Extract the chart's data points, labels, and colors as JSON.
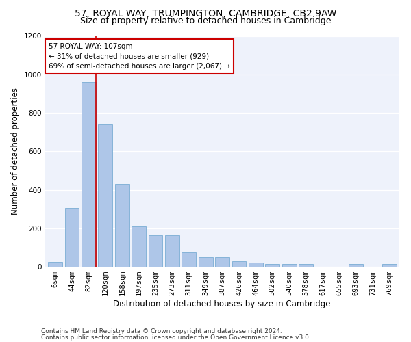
{
  "title_line1": "57, ROYAL WAY, TRUMPINGTON, CAMBRIDGE, CB2 9AW",
  "title_line2": "Size of property relative to detached houses in Cambridge",
  "xlabel": "Distribution of detached houses by size in Cambridge",
  "ylabel": "Number of detached properties",
  "bins": [
    "6sqm",
    "44sqm",
    "82sqm",
    "120sqm",
    "158sqm",
    "197sqm",
    "235sqm",
    "273sqm",
    "311sqm",
    "349sqm",
    "387sqm",
    "426sqm",
    "464sqm",
    "502sqm",
    "540sqm",
    "578sqm",
    "617sqm",
    "655sqm",
    "693sqm",
    "731sqm",
    "769sqm"
  ],
  "values": [
    25,
    305,
    960,
    740,
    430,
    210,
    165,
    165,
    75,
    50,
    50,
    30,
    20,
    15,
    15,
    15,
    0,
    0,
    15,
    0,
    15
  ],
  "bar_color": "#aec6e8",
  "bar_edge_color": "#7aadd4",
  "marker_line_color": "#cc0000",
  "annotation_text": "57 ROYAL WAY: 107sqm\n← 31% of detached houses are smaller (929)\n69% of semi-detached houses are larger (2,067) →",
  "annotation_box_color": "#ffffff",
  "annotation_box_edge_color": "#cc0000",
  "ylim": [
    0,
    1200
  ],
  "yticks": [
    0,
    200,
    400,
    600,
    800,
    1000,
    1200
  ],
  "background_color": "#eef2fb",
  "footer_line1": "Contains HM Land Registry data © Crown copyright and database right 2024.",
  "footer_line2": "Contains public sector information licensed under the Open Government Licence v3.0.",
  "title_fontsize": 10,
  "subtitle_fontsize": 9,
  "axis_label_fontsize": 8.5,
  "tick_fontsize": 7.5,
  "annotation_fontsize": 7.5,
  "footer_fontsize": 6.5
}
